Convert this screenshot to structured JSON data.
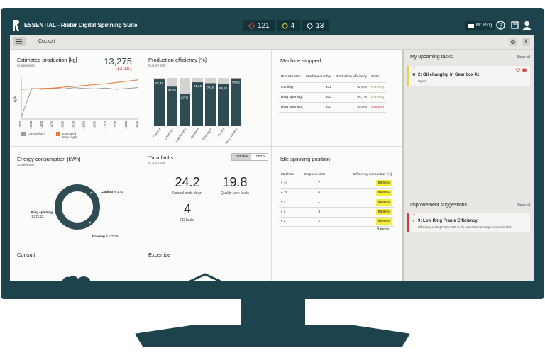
{
  "app": {
    "title": "ESSENTIAL - Rieter Digital Spinning Suite",
    "user": "Mr. Ring"
  },
  "alerts": [
    {
      "count": "121",
      "color": "#e04040"
    },
    {
      "count": "4",
      "color": "#e8d43a"
    },
    {
      "count": "13",
      "color": "#ffffff"
    }
  ],
  "breadcrumb": "Cockpit",
  "colors": {
    "teal": "#2f4c54",
    "orange": "#e87a3a",
    "gray": "#9a9a9a",
    "yellow": "#f3ec3a",
    "red": "#d23c3c",
    "green": "#7aa640"
  },
  "estimated_production": {
    "title": "Estimated production [kg]",
    "subtitle": "Current shift",
    "value": "13,275",
    "delta": "-12,187",
    "ylabel": "kg/h",
    "legend": [
      {
        "label": "Current kg/h",
        "color": "#9a9a9a"
      },
      {
        "label": "Estimated target kg/h",
        "color": "#e87a3a"
      }
    ]
  },
  "chart_data": {
    "type": "line",
    "x": [
      "13:00",
      "13:30",
      "14:00",
      "14:30",
      "15:00",
      "15:30",
      "16:00",
      "16:30",
      "17:00",
      "17:30",
      "18:00",
      "18:30"
    ],
    "series": [
      {
        "name": "Current kg/h",
        "values": [
          5,
          72,
          70,
          73,
          71,
          74,
          72,
          71,
          73,
          70,
          72,
          74
        ]
      },
      {
        "name": "Estimated target kg/h",
        "values": [
          70,
          71,
          72,
          73,
          75,
          77,
          79,
          81,
          83,
          86,
          89,
          92
        ]
      }
    ],
    "ylim": [
      0,
      100
    ]
  },
  "production_efficiency": {
    "title": "Production efficiency [%]",
    "subtitle": "Current shift",
    "bars": [
      {
        "label": "Carding",
        "value": "97,49",
        "frac": 0.97
      },
      {
        "label": "Drawing I",
        "value": "81,84",
        "frac": 0.82
      },
      {
        "label": "Lap forming",
        "value": "67,21",
        "frac": 0.67
      },
      {
        "label": "Combing",
        "value": "91,12",
        "frac": 0.91
      },
      {
        "label": "Drawing II",
        "value": "89,08",
        "frac": 0.89
      },
      {
        "label": "Roving",
        "value": "86,93",
        "frac": 0.87
      },
      {
        "label": "Ring spinning",
        "value": "99,82",
        "frac": 0.99
      }
    ]
  },
  "machine_stopped": {
    "title": "Machine stopped",
    "headers": [
      "Process step",
      "Machine number",
      "Production efficiency",
      "State"
    ],
    "rows": [
      [
        "Carding",
        "101",
        "92,5%",
        "Running"
      ],
      [
        "Ring spinning",
        "100",
        "94,7%",
        "Running"
      ],
      [
        "Ring spinning",
        "200",
        "93,6%",
        "Stopped"
      ]
    ]
  },
  "energy": {
    "title": "Energy consumption [kWh]",
    "subtitle": "Current shift",
    "labels": [
      {
        "label": "Carding",
        "value": "872.51"
      },
      {
        "label": "Ring spinning",
        "value": "1,271.22"
      },
      {
        "label": "Drawing II",
        "value": "172.79"
      }
    ]
  },
  "yarn_faults": {
    "title": "Yarn faults",
    "subtitle": "Current shift",
    "tabs": [
      "1000 km",
      "1000 h"
    ],
    "natural_ends_down": "24.2",
    "natural_ends_down_label": "Natural ends down",
    "quality_faults": "19.8",
    "quality_faults_label": "Quality yarn faults",
    "fd_faults": "4",
    "fd_faults_label": "FD faults"
  },
  "idle": {
    "title": "Idle spinning position",
    "headers": [
      "Machine",
      "Stopped units",
      "Efficiency momentary [%]"
    ],
    "rows": [
      [
        "14",
        "7",
        "99.58%"
      ],
      [
        "15",
        "6",
        "99.64%"
      ],
      [
        "1",
        "1",
        "99.82%"
      ],
      [
        "3",
        "3",
        "99.82%"
      ],
      [
        "2",
        "2",
        "99.88%"
      ]
    ],
    "more": "9 more..."
  },
  "consult": {
    "title": "Consult"
  },
  "expertise": {
    "title": "Expertise"
  },
  "tasks": {
    "title": "My upcoming tasks",
    "show_all": "Show all",
    "item_title": "2: Oil changing in Gear box 41",
    "item_status": "Open"
  },
  "improvements": {
    "title": "Improvement suggestions",
    "show_all": "Show all",
    "item_title": "9: Low Ring Frame Efficiency",
    "item_desc": "Efficiency of RingFrame #10 is 2% lower than average in current shift"
  }
}
